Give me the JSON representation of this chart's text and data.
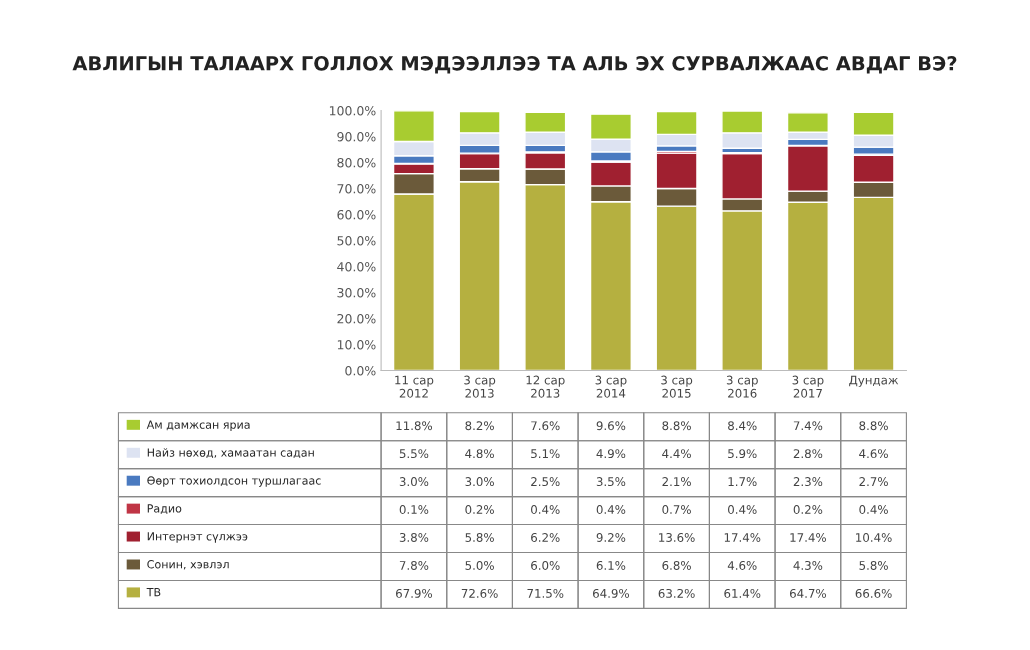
{
  "chart_data": {
    "type": "bar",
    "stacked": true,
    "title": "АВЛИГЫН ТАЛААРХ ГОЛЛОХ МЭДЭЭЛЛЭЭ ТА АЛЬ ЭХ СУРВАЛЖААС АВДАГ ВЭ?",
    "categories": [
      "11 сар\n2012",
      "3 сар\n2013",
      "12 сар\n2013",
      "3 сар\n2014",
      "3 сар\n2015",
      "3 сар\n2016",
      "3 сар\n2017",
      "Дундаж"
    ],
    "ylim": [
      0,
      100
    ],
    "yticks": [
      {
        "value": 0,
        "label": "0.0%"
      },
      {
        "value": 10,
        "label": "10.0%"
      },
      {
        "value": 20,
        "label": "20.0%"
      },
      {
        "value": 30,
        "label": "30.0%"
      },
      {
        "value": 40,
        "label": "40.0%"
      },
      {
        "value": 50,
        "label": "50.0%"
      },
      {
        "value": 60,
        "label": "60.0%"
      },
      {
        "value": 70,
        "label": "70.0%"
      },
      {
        "value": 80,
        "label": "80.0%"
      },
      {
        "value": 90,
        "label": "90.0%"
      },
      {
        "value": 100,
        "label": "100.0%"
      }
    ],
    "legend": "bottom left",
    "series": [
      {
        "name": "ТВ",
        "color": "#b5b040",
        "values": [
          67.9,
          72.6,
          71.5,
          64.9,
          63.2,
          61.4,
          64.7,
          66.6
        ],
        "value_labels": [
          "67.9%",
          "72.6%",
          "71.5%",
          "64.9%",
          "63.2%",
          "61.4%",
          "64.7%",
          "66.6%"
        ]
      },
      {
        "name": "Сонин, хэвлэл",
        "color": "#6b5a3a",
        "values": [
          7.8,
          5.0,
          6.0,
          6.1,
          6.8,
          4.6,
          4.3,
          5.8
        ],
        "value_labels": [
          "7.8%",
          "5.0%",
          "6.0%",
          "6.1%",
          "6.8%",
          "4.6%",
          "4.3%",
          "5.8%"
        ]
      },
      {
        "name": "Интернэт сүлжээ",
        "color": "#a02030",
        "values": [
          3.8,
          5.8,
          6.2,
          9.2,
          13.6,
          17.4,
          17.4,
          10.4
        ],
        "value_labels": [
          "3.8%",
          "5.8%",
          "6.2%",
          "9.2%",
          "13.6%",
          "17.4%",
          "17.4%",
          "10.4%"
        ]
      },
      {
        "name": "Радио",
        "color": "#c03545",
        "values": [
          0.1,
          0.2,
          0.4,
          0.4,
          0.7,
          0.4,
          0.2,
          0.4
        ],
        "value_labels": [
          "0.1%",
          "0.2%",
          "0.4%",
          "0.4%",
          "0.7%",
          "0.4%",
          "0.2%",
          "0.4%"
        ]
      },
      {
        "name": "Өөрт тохиолдсон туршлагаас",
        "color": "#4a7ac0",
        "values": [
          3.0,
          3.0,
          2.5,
          3.5,
          2.1,
          1.7,
          2.3,
          2.7
        ],
        "value_labels": [
          "3.0%",
          "3.0%",
          "2.5%",
          "3.5%",
          "2.1%",
          "1.7%",
          "2.3%",
          "2.7%"
        ]
      },
      {
        "name": "Найз нөхөд, хамаатан садан",
        "color": "#dde3f2",
        "values": [
          5.5,
          4.8,
          5.1,
          4.9,
          4.4,
          5.9,
          2.8,
          4.6
        ],
        "value_labels": [
          "5.5%",
          "4.8%",
          "5.1%",
          "4.9%",
          "4.4%",
          "5.9%",
          "2.8%",
          "4.6%"
        ]
      },
      {
        "name": "Ам дамжсан яриа",
        "color": "#a8cc30",
        "values": [
          11.8,
          8.2,
          7.6,
          9.6,
          8.8,
          8.4,
          7.4,
          8.8
        ],
        "value_labels": [
          "11.8%",
          "8.2%",
          "7.6%",
          "9.6%",
          "8.8%",
          "8.4%",
          "7.4%",
          "8.8%"
        ]
      }
    ]
  }
}
